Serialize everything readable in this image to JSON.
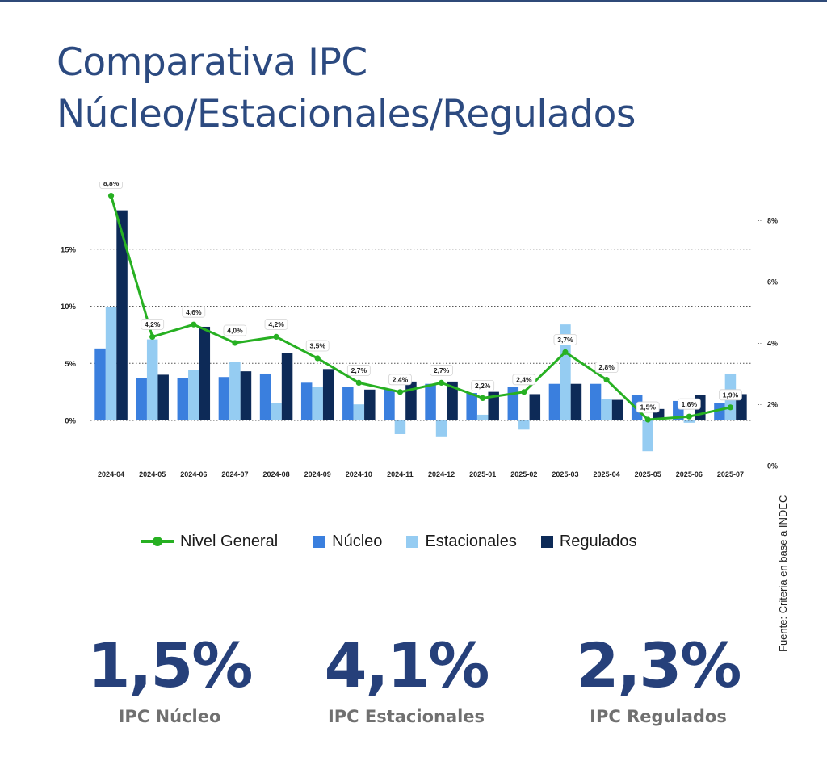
{
  "title": {
    "line1": "Comparativa IPC",
    "line2": "Núcleo/Estacionales/Regulados"
  },
  "source": "Fuente: Criteria en base a INDEC",
  "colors": {
    "nucleo": "#3a7fde",
    "estacionales": "#95ccf2",
    "regulados": "#0d2a57",
    "nivel_general": "#27b022",
    "title": "#2c4a80",
    "stat_value": "#26407a",
    "stat_label": "#707070"
  },
  "chart_data": {
    "type": "bar",
    "categories": [
      "2024-04",
      "2024-05",
      "2024-06",
      "2024-07",
      "2024-08",
      "2024-09",
      "2024-10",
      "2024-11",
      "2024-12",
      "2025-01",
      "2025-02",
      "2025-03",
      "2025-04",
      "2025-05",
      "2025-06",
      "2025-07"
    ],
    "series": [
      {
        "name": "Núcleo",
        "axis": "left",
        "values": [
          6.3,
          3.7,
          3.7,
          3.8,
          4.1,
          3.3,
          2.9,
          2.7,
          3.2,
          2.4,
          2.9,
          3.2,
          3.2,
          2.2,
          1.7,
          1.5
        ]
      },
      {
        "name": "Estacionales",
        "axis": "left",
        "values": [
          9.9,
          7.1,
          4.4,
          5.1,
          1.5,
          2.9,
          1.4,
          -1.2,
          -1.4,
          0.5,
          -0.8,
          8.4,
          1.9,
          -2.7,
          -0.2,
          4.1
        ]
      },
      {
        "name": "Regulados",
        "axis": "left",
        "values": [
          18.4,
          4.0,
          8.2,
          4.3,
          5.9,
          4.5,
          2.7,
          3.4,
          3.4,
          2.5,
          2.3,
          3.2,
          1.8,
          1.0,
          2.2,
          2.3
        ]
      },
      {
        "name": "Nivel General",
        "type": "line",
        "axis": "right",
        "values": [
          8.8,
          4.2,
          4.6,
          4.0,
          4.2,
          3.5,
          2.7,
          2.4,
          2.7,
          2.2,
          2.4,
          3.7,
          2.8,
          1.5,
          1.6,
          1.9
        ]
      }
    ],
    "line_labels": [
      "8,8%",
      "4,2%",
      "4,6%",
      "4,0%",
      "4,2%",
      "3,5%",
      "2,7%",
      "2,4%",
      "2,7%",
      "2,2%",
      "2,4%",
      "3,7%",
      "2,8%",
      "1,5%",
      "1,6%",
      "1,9%"
    ],
    "y_left": {
      "ticks": [
        0,
        5,
        10,
        15
      ],
      "tick_labels": [
        "0%",
        "5%",
        "10%",
        "15%"
      ],
      "range": [
        -3,
        18.5
      ]
    },
    "y_right": {
      "ticks": [
        0,
        2,
        4,
        6,
        8
      ],
      "tick_labels": [
        "0%",
        "2%",
        "4%",
        "6%",
        "8%"
      ],
      "range": [
        0,
        8.8
      ]
    },
    "grid": true,
    "legend_position": "bottom"
  },
  "legend": {
    "items": [
      {
        "label": "Nivel General"
      },
      {
        "label": "Núcleo"
      },
      {
        "label": "Estacionales"
      },
      {
        "label": "Regulados"
      }
    ]
  },
  "stats": [
    {
      "value": "1,5%",
      "label": "IPC Núcleo"
    },
    {
      "value": "4,1%",
      "label": "IPC Estacionales"
    },
    {
      "value": "2,3%",
      "label": "IPC Regulados"
    }
  ]
}
